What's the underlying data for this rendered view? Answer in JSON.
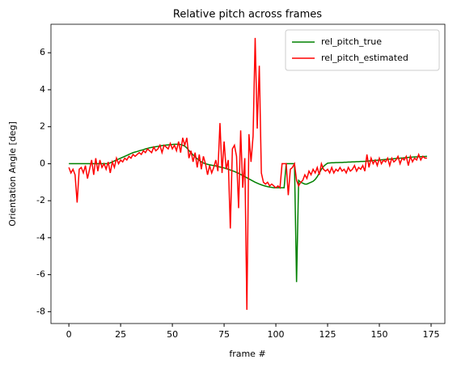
{
  "chart_data": {
    "type": "line",
    "title": "Relative pitch across frames",
    "x_label": "frame #",
    "y_label": "Orientation Angle [deg]",
    "x": [
      0,
      1,
      2,
      3,
      4,
      5,
      6,
      7,
      8,
      9,
      10,
      11,
      12,
      13,
      14,
      15,
      16,
      17,
      18,
      19,
      20,
      21,
      22,
      23,
      24,
      25,
      26,
      27,
      28,
      29,
      30,
      31,
      32,
      33,
      34,
      35,
      36,
      37,
      38,
      39,
      40,
      41,
      42,
      43,
      44,
      45,
      46,
      47,
      48,
      49,
      50,
      51,
      52,
      53,
      54,
      55,
      56,
      57,
      58,
      59,
      60,
      61,
      62,
      63,
      64,
      65,
      66,
      67,
      68,
      69,
      70,
      71,
      72,
      73,
      74,
      75,
      76,
      77,
      78,
      79,
      80,
      81,
      82,
      83,
      84,
      85,
      86,
      87,
      88,
      89,
      90,
      91,
      92,
      93,
      94,
      95,
      96,
      97,
      98,
      99,
      100,
      101,
      102,
      103,
      104,
      105,
      106,
      107,
      108,
      109,
      110,
      111,
      112,
      113,
      114,
      115,
      116,
      117,
      118,
      119,
      120,
      121,
      122,
      123,
      124,
      125,
      126,
      127,
      128,
      129,
      130,
      131,
      132,
      133,
      134,
      135,
      136,
      137,
      138,
      139,
      140,
      141,
      142,
      143,
      144,
      145,
      146,
      147,
      148,
      149,
      150,
      151,
      152,
      153,
      154,
      155,
      156,
      157,
      158,
      159,
      160,
      161,
      162,
      163,
      164,
      165,
      166,
      167,
      168,
      169,
      170,
      171,
      172,
      173
    ],
    "series": [
      {
        "name": "rel_pitch_true",
        "color": "#008000",
        "values": [
          0,
          0,
          0,
          0,
          0,
          0,
          0,
          0,
          0,
          0,
          0,
          0,
          0,
          0,
          0,
          0,
          0,
          0,
          0,
          0,
          0.05,
          0.1,
          0.15,
          0.2,
          0.25,
          0.3,
          0.35,
          0.4,
          0.45,
          0.5,
          0.55,
          0.6,
          0.63,
          0.66,
          0.7,
          0.73,
          0.76,
          0.8,
          0.83,
          0.86,
          0.88,
          0.9,
          0.92,
          0.94,
          0.96,
          0.98,
          1.0,
          1.01,
          1.02,
          1.03,
          1.04,
          1.05,
          1.05,
          1.05,
          1.04,
          1.0,
          0.95,
          0.85,
          0.72,
          0.6,
          0.48,
          0.37,
          0.27,
          0.18,
          0.1,
          0.04,
          0,
          -0.03,
          -0.06,
          -0.08,
          -0.1,
          -0.12,
          -0.15,
          -0.18,
          -0.2,
          -0.23,
          -0.26,
          -0.3,
          -0.34,
          -0.38,
          -0.42,
          -0.47,
          -0.52,
          -0.58,
          -0.64,
          -0.7,
          -0.76,
          -0.82,
          -0.88,
          -0.94,
          -1.0,
          -1.05,
          -1.1,
          -1.14,
          -1.18,
          -1.21,
          -1.24,
          -1.26,
          -1.28,
          -1.3,
          -1.3,
          -1.3,
          -1.3,
          -1.3,
          -1.3,
          0,
          0,
          0,
          0,
          0,
          -6.4,
          -0.9,
          -1.0,
          -1.05,
          -1.1,
          -1.1,
          -1.05,
          -1.0,
          -0.95,
          -0.85,
          -0.7,
          -0.5,
          -0.3,
          -0.15,
          -0.05,
          0.03,
          0.04,
          0.05,
          0.05,
          0.06,
          0.06,
          0.07,
          0.07,
          0.08,
          0.08,
          0.09,
          0.09,
          0.1,
          0.1,
          0.11,
          0.11,
          0.12,
          0.12,
          0.13,
          0.14,
          0.15,
          0.16,
          0.17,
          0.18,
          0.19,
          0.2,
          0.21,
          0.22,
          0.23,
          0.24,
          0.25,
          0.26,
          0.27,
          0.28,
          0.29,
          0.3,
          0.31,
          0.32,
          0.33,
          0.34,
          0.35,
          0.36,
          0.37,
          0.37,
          0.38,
          0.38,
          0.39,
          0.39,
          0.4
        ]
      },
      {
        "name": "rel_pitch_estimated",
        "color": "#ff0000",
        "values": [
          -0.2,
          -0.5,
          -0.3,
          -0.6,
          -2.1,
          -0.3,
          -0.2,
          -0.5,
          -0.1,
          -0.8,
          -0.3,
          0.2,
          -0.6,
          0.3,
          -0.4,
          0.2,
          -0.2,
          0,
          -0.3,
          0.1,
          -0.5,
          0.1,
          -0.2,
          0.3,
          0,
          0.2,
          0.1,
          0.3,
          0.2,
          0.4,
          0.3,
          0.5,
          0.4,
          0.5,
          0.6,
          0.5,
          0.7,
          0.6,
          0.8,
          0.7,
          0.6,
          0.9,
          0.7,
          0.8,
          1.0,
          0.6,
          1.0,
          0.9,
          0.8,
          1.1,
          0.8,
          1.0,
          0.7,
          1.2,
          0.6,
          1.4,
          1.0,
          1.4,
          0.3,
          0.7,
          0.1,
          0.6,
          -0.2,
          0.5,
          -0.3,
          0.4,
          0,
          -0.6,
          -0.1,
          -0.5,
          -0.2,
          0.2,
          -0.4,
          2.2,
          -0.5,
          1.2,
          -0.3,
          0.2,
          -3.5,
          0.8,
          1.0,
          0.4,
          -2.4,
          1.8,
          -1.3,
          0.3,
          -7.9,
          1.6,
          0.1,
          1.5,
          6.8,
          1.9,
          5.3,
          -0.5,
          -1.0,
          -1.1,
          -1.0,
          -1.2,
          -1.1,
          -1.2,
          -1.3,
          -1.2,
          -1.3,
          0,
          0,
          0,
          -1.7,
          -0.3,
          -0.2,
          0,
          -0.9,
          -1.2,
          -1.0,
          -0.9,
          -0.6,
          -0.8,
          -0.4,
          -0.6,
          -0.3,
          -0.5,
          -0.2,
          -0.6,
          0,
          -0.3,
          -0.4,
          -0.3,
          -0.5,
          -0.2,
          -0.5,
          -0.3,
          -0.4,
          -0.2,
          -0.4,
          -0.3,
          -0.5,
          -0.2,
          -0.4,
          -0.3,
          -0.1,
          -0.4,
          -0.2,
          -0.3,
          -0.1,
          -0.4,
          0.5,
          -0.2,
          0.3,
          0,
          0.2,
          -0.1,
          0.3,
          0,
          0.2,
          0.1,
          0.3,
          -0.1,
          0.3,
          0.1,
          0.2,
          0.4,
          0,
          0.3,
          0.2,
          0.4,
          -0.1,
          0.4,
          0.1,
          0.3,
          0.2,
          0.5,
          0.2,
          0.4,
          0.3,
          0.3
        ]
      }
    ],
    "xlim": [
      -8.65,
      181.65
    ],
    "xticks": [
      0,
      25,
      50,
      75,
      100,
      125,
      150,
      175
    ],
    "ylim": [
      -8.64,
      7.54
    ],
    "yticks": [
      -8,
      -6,
      -4,
      -2,
      0,
      2,
      4,
      6
    ],
    "legend": "upper right"
  }
}
